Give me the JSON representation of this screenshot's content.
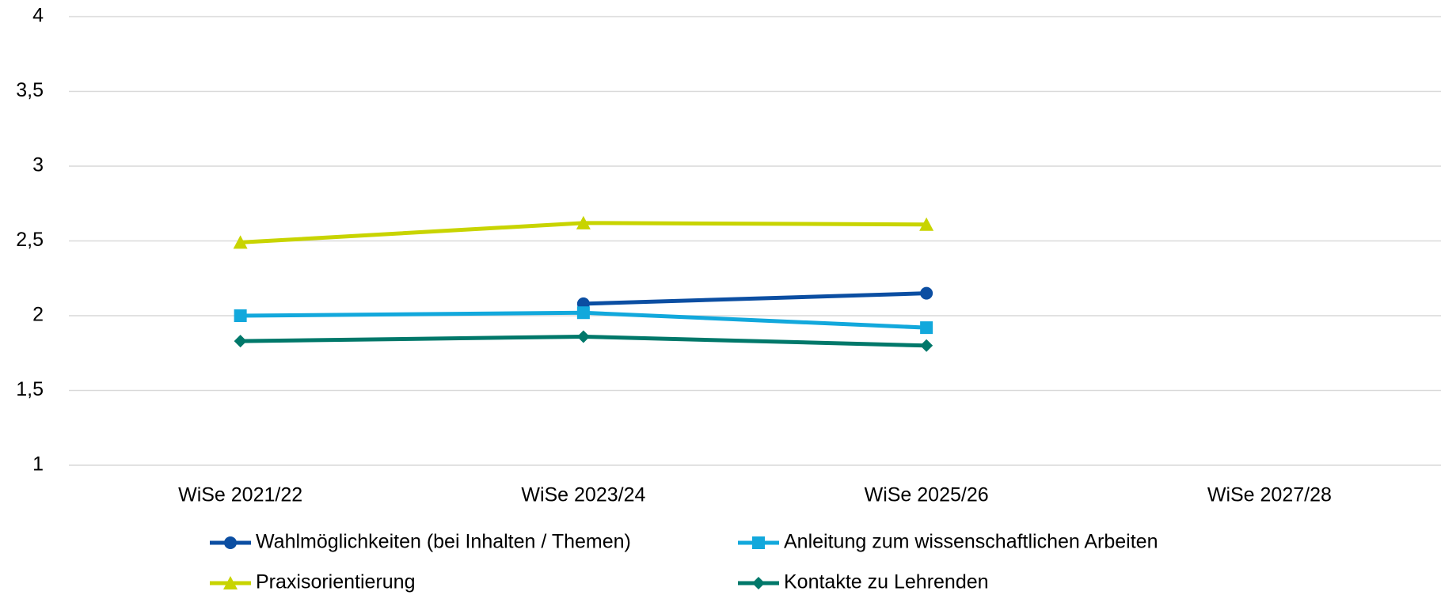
{
  "chart_data": {
    "type": "line",
    "categories": [
      "WiSe 2021/22",
      "WiSe 2023/24",
      "WiSe 2025/26",
      "WiSe 2027/28"
    ],
    "series": [
      {
        "name": "Wahlmöglichkeiten (bei Inhalten / Themen)",
        "color": "#0b4ea2",
        "marker": "circle",
        "values": [
          null,
          2.08,
          2.15,
          null
        ]
      },
      {
        "name": "Anleitung zum wissenschaftlichen Arbeiten",
        "color": "#12a8dc",
        "marker": "square",
        "values": [
          2.0,
          2.02,
          1.92,
          null
        ]
      },
      {
        "name": "Praxisorientierung",
        "color": "#c8d400",
        "marker": "triangle",
        "values": [
          2.49,
          2.62,
          2.61,
          null
        ]
      },
      {
        "name": "Kontakte zu Lehrenden",
        "color": "#00786a",
        "marker": "diamond",
        "values": [
          1.83,
          1.86,
          1.8,
          null
        ]
      }
    ],
    "ylim": [
      1,
      4
    ],
    "yticks": [
      1,
      {
        "value": 1.5,
        "label": "1,5"
      },
      2,
      {
        "value": 2.5,
        "label": "2,5"
      },
      3,
      {
        "value": 3.5,
        "label": "3,5"
      },
      4
    ],
    "grid": true,
    "legend": "bottom"
  }
}
